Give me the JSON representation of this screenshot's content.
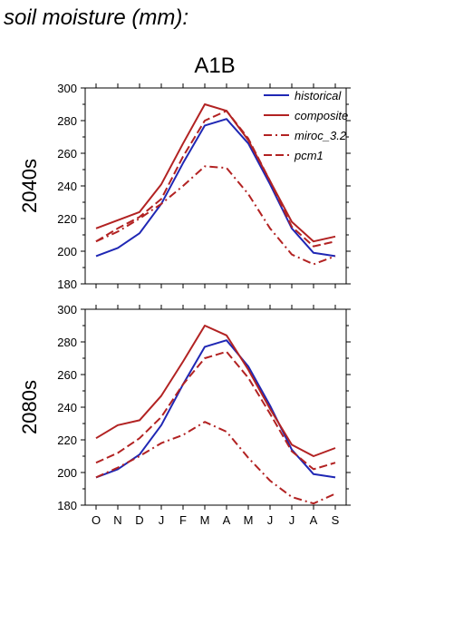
{
  "page": {
    "title": "soil moisture (mm):"
  },
  "panel": {
    "scenario": "A1B"
  },
  "legend": {
    "placement": "top-right, upper panel",
    "entries": [
      {
        "label": "historical",
        "color": "#1f27b4",
        "dash": "solid"
      },
      {
        "label": "composite",
        "color": "#b22222",
        "dash": "solid"
      },
      {
        "label": "miroc_3.2",
        "color": "#b22222",
        "dash": "dashdot"
      },
      {
        "label": "pcm1",
        "color": "#b22222",
        "dash": "dashed"
      }
    ]
  },
  "chart_data": [
    {
      "type": "line",
      "row_label": "2040s",
      "title": "A1B",
      "categories": [
        "O",
        "N",
        "D",
        "J",
        "F",
        "M",
        "A",
        "M",
        "J",
        "J",
        "A",
        "S"
      ],
      "ylim": [
        180,
        300
      ],
      "yticks": [
        180,
        200,
        220,
        240,
        260,
        280,
        300
      ],
      "xtick_labels_shown": false,
      "grid": false,
      "series": [
        {
          "name": "historical",
          "color": "#1f27b4",
          "dash": "solid",
          "values": [
            197,
            202,
            211,
            229,
            254,
            277,
            281,
            266,
            241,
            214,
            199,
            197
          ]
        },
        {
          "name": "composite",
          "color": "#b22222",
          "dash": "solid",
          "values": [
            214,
            219,
            224,
            241,
            266,
            290,
            286,
            268,
            243,
            218,
            206,
            209
          ]
        },
        {
          "name": "miroc_3.2",
          "color": "#b22222",
          "dash": "dashdot",
          "values": [
            206,
            212,
            220,
            229,
            240,
            252,
            251,
            235,
            214,
            198,
            192,
            197
          ]
        },
        {
          "name": "pcm1",
          "color": "#b22222",
          "dash": "dashed",
          "values": [
            206,
            214,
            221,
            232,
            258,
            280,
            286,
            269,
            243,
            215,
            203,
            206
          ]
        }
      ]
    },
    {
      "type": "line",
      "row_label": "2080s",
      "categories": [
        "O",
        "N",
        "D",
        "J",
        "F",
        "M",
        "A",
        "M",
        "J",
        "J",
        "A",
        "S"
      ],
      "ylim": [
        180,
        300
      ],
      "yticks": [
        180,
        200,
        220,
        240,
        260,
        280,
        300
      ],
      "xtick_labels_shown": true,
      "grid": false,
      "series": [
        {
          "name": "historical",
          "color": "#1f27b4",
          "dash": "solid",
          "values": [
            197,
            202,
            211,
            229,
            254,
            277,
            281,
            265,
            241,
            214,
            199,
            197
          ]
        },
        {
          "name": "composite",
          "color": "#b22222",
          "dash": "solid",
          "values": [
            221,
            229,
            232,
            247,
            268,
            290,
            284,
            263,
            239,
            217,
            210,
            215
          ]
        },
        {
          "name": "miroc_3.2",
          "color": "#b22222",
          "dash": "dashdot",
          "values": [
            197,
            203,
            210,
            218,
            223,
            231,
            225,
            209,
            195,
            185,
            181,
            187
          ]
        },
        {
          "name": "pcm1",
          "color": "#b22222",
          "dash": "dashed",
          "values": [
            206,
            212,
            221,
            234,
            254,
            270,
            274,
            258,
            236,
            213,
            202,
            206
          ]
        }
      ]
    }
  ]
}
